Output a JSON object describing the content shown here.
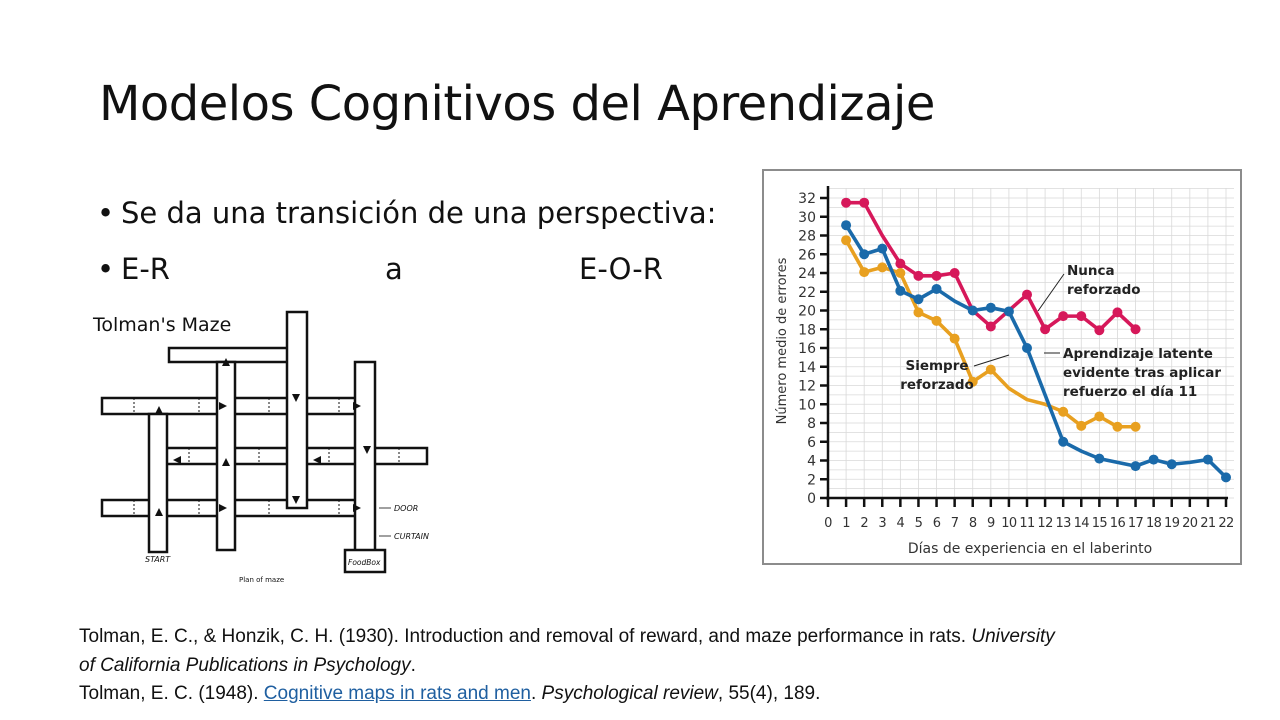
{
  "slide": {
    "title": "Modelos Cognitivos del Aprendizaje",
    "bullets": [
      {
        "bullet_char": "•",
        "text": "Se da una transición de una perspectiva:"
      },
      {
        "bullet_char": "•",
        "parts": [
          "E-R",
          "a",
          "E-O-R"
        ]
      }
    ]
  },
  "maze_figure": {
    "title": "Tolman's Maze",
    "labels": {
      "start": "START",
      "door": "DOOR",
      "curtain": "CURTAIN",
      "food_box": "FoodBox",
      "caption": "Plan of maze"
    }
  },
  "chart_data": {
    "type": "line",
    "title": "",
    "xlabel": "Días de experiencia en el laberinto",
    "ylabel": "Número medio de errores",
    "xlim": [
      0,
      22
    ],
    "ylim": [
      0,
      32
    ],
    "x_ticks": [
      0,
      1,
      2,
      3,
      4,
      5,
      6,
      7,
      8,
      9,
      10,
      11,
      12,
      13,
      14,
      15,
      16,
      17,
      18,
      19,
      20,
      21,
      22
    ],
    "y_ticks": [
      0,
      2,
      4,
      6,
      8,
      10,
      12,
      14,
      16,
      18,
      20,
      22,
      24,
      26,
      28,
      30,
      32
    ],
    "grid": true,
    "legend": "inline annotations",
    "series": [
      {
        "name": "Nunca reforzado",
        "color": "#d6185a",
        "x": [
          1,
          2,
          3,
          4,
          5,
          6,
          7,
          8,
          9,
          10,
          11,
          12,
          13,
          14,
          15,
          16,
          17
        ],
        "values": [
          31.5,
          31.5,
          28,
          25,
          23.7,
          23.7,
          24,
          20,
          18.3,
          20,
          21.7,
          18,
          19.4,
          19.4,
          17.9,
          19.8,
          18
        ]
      },
      {
        "name": "Siempre reforzado",
        "color": "#e8a020",
        "x": [
          1,
          2,
          3,
          4,
          5,
          6,
          7,
          8,
          9,
          10,
          11,
          12,
          13,
          14,
          15,
          16,
          17
        ],
        "values": [
          27.5,
          24.1,
          24.6,
          24,
          19.8,
          18.9,
          17,
          12.4,
          13.7,
          11.7,
          10.5,
          10,
          9.2,
          7.7,
          8.7,
          7.6,
          7.6
        ]
      },
      {
        "name": "Aprendizaje latente evidente tras aplicar refuerzo el día 11",
        "color": "#1a6aaa",
        "x": [
          1,
          2,
          3,
          4,
          5,
          6,
          7,
          8,
          9,
          10,
          11,
          12,
          13,
          14,
          15,
          16,
          17,
          18,
          19,
          20,
          21,
          22
        ],
        "values": [
          29.1,
          26,
          26.6,
          22.1,
          21.2,
          22.3,
          21,
          20,
          20.3,
          19.9,
          16,
          11,
          6,
          5,
          4.2,
          3.8,
          3.4,
          4.1,
          3.6,
          3.8,
          4.1,
          2.2
        ]
      }
    ],
    "markers": {
      "Nunca reforzado": [
        1,
        2,
        4,
        5,
        6,
        7,
        9,
        11,
        12,
        13,
        14,
        15,
        16,
        17
      ],
      "Siempre reforzado": [
        1,
        2,
        3,
        4,
        5,
        6,
        7,
        8,
        9,
        13,
        14,
        15,
        16,
        17
      ],
      "Aprendizaje latente evidente tras aplicar refuerzo el día 11": [
        1,
        2,
        3,
        4,
        5,
        6,
        8,
        9,
        10,
        11,
        13,
        15,
        17,
        18,
        19,
        21,
        22
      ]
    },
    "annotations": [
      {
        "lines": [
          "Nunca",
          "reforzado"
        ]
      },
      {
        "lines": [
          "Siempre",
          "reforzado"
        ]
      },
      {
        "lines": [
          "Aprendizaje latente",
          "evidente tras aplicar",
          "refuerzo el día 11"
        ]
      }
    ]
  },
  "references": {
    "ref1_main": "Tolman, E. C., & Honzik, C. H. (1930). Introduction and removal of reward, and maze performance in rats. ",
    "ref1_italic_a": "University",
    "ref1_italic_b": "of California Publications in Psychology",
    "ref1_end": ".",
    "ref2_main": "Tolman, E. C. (1948). ",
    "ref2_link": "Cognitive maps in rats and men",
    "ref2_mid": ". ",
    "ref2_italic": "Psychological review",
    "ref2_end": ", 55(4), 189."
  }
}
